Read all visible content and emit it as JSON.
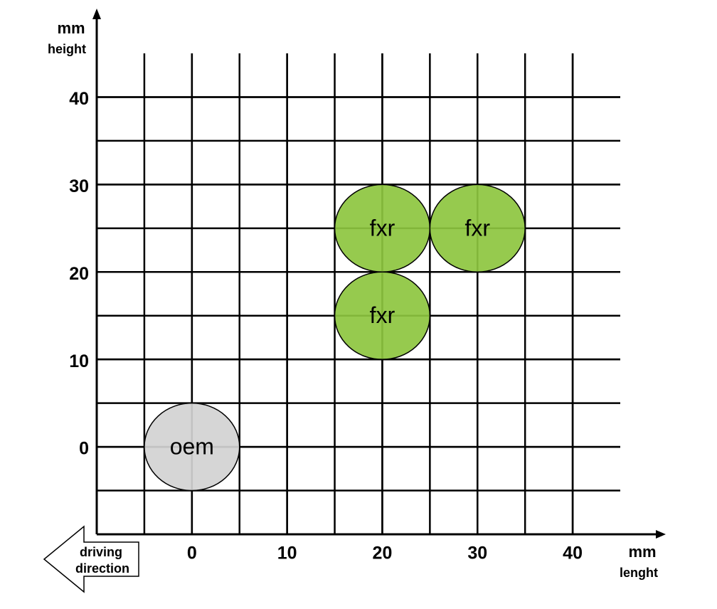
{
  "chart_data": {
    "type": "scatter",
    "x_label_unit": "mm",
    "x_label": "lenght",
    "y_label_unit": "mm",
    "y_label": "height",
    "annotation": [
      "driving",
      "direction"
    ],
    "xlim": [
      -10,
      45
    ],
    "ylim": [
      -10,
      45
    ],
    "xticks": [
      0,
      10,
      20,
      30,
      40
    ],
    "yticks": [
      0,
      10,
      20,
      30,
      40
    ],
    "grid": true,
    "series": [
      {
        "name": "oem",
        "color": "#d3d3d3",
        "x": [
          0
        ],
        "values": [
          0
        ],
        "sizes": [
          10
        ]
      },
      {
        "name": "fxr",
        "color": "#8dc63f",
        "x": [
          20,
          30,
          20
        ],
        "values": [
          25,
          25,
          15
        ],
        "sizes": [
          10,
          10,
          10
        ]
      }
    ]
  }
}
